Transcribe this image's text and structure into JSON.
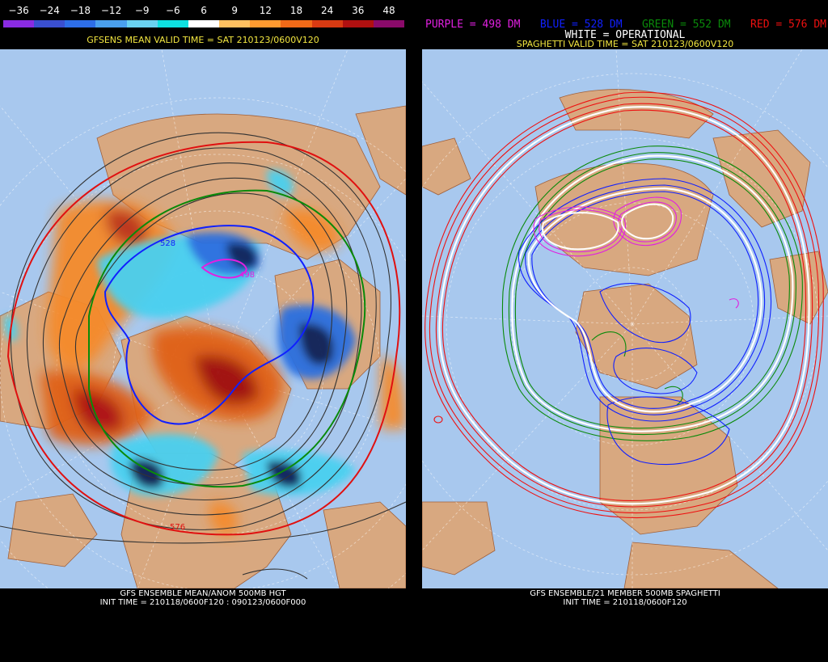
{
  "left": {
    "colorbar": {
      "labels": [
        "−36",
        "−24",
        "−18",
        "−12",
        "−9",
        "−6",
        "6",
        "9",
        "12",
        "18",
        "24",
        "36",
        "48"
      ],
      "colors": [
        "#8a2be2",
        "#3a4fd0",
        "#2d6ee8",
        "#4aa0ee",
        "#6ad2f0",
        "#0ee0e0",
        "#ffffff",
        "#ffc060",
        "#ff9a30",
        "#f26a18",
        "#d83a12",
        "#b01010",
        "#8a0a6a"
      ]
    },
    "title": "GFSENS MEAN VALID TIME = SAT 210123/0600V120",
    "bottom_line1": "GFS ENSEMBLE MEAN/ANOM 500MB HGT",
    "bottom_line2": "INIT TIME = 210118/0600F120 : 090123/0600F000",
    "contour_labels": [
      "528",
      "498",
      "576"
    ]
  },
  "right": {
    "legend": {
      "purple": "PURPLE = 498 DM",
      "blue": "BLUE = 528 DM",
      "green": "GREEN = 552 DM",
      "red": "RED = 576 DM",
      "white": "WHITE = OPERATIONAL",
      "purple_color": "#e020e0",
      "blue_color": "#1020ff",
      "green_color": "#0a8a0a",
      "red_color": "#ee1010"
    },
    "title": "SPAGHETTI VALID TIME = SAT 210123/0600V120",
    "bottom_line1": "GFS ENSEMBLE/21 MEMBER 500MB SPAGHETTI",
    "bottom_line2": "INIT TIME = 210118/0600F120"
  }
}
